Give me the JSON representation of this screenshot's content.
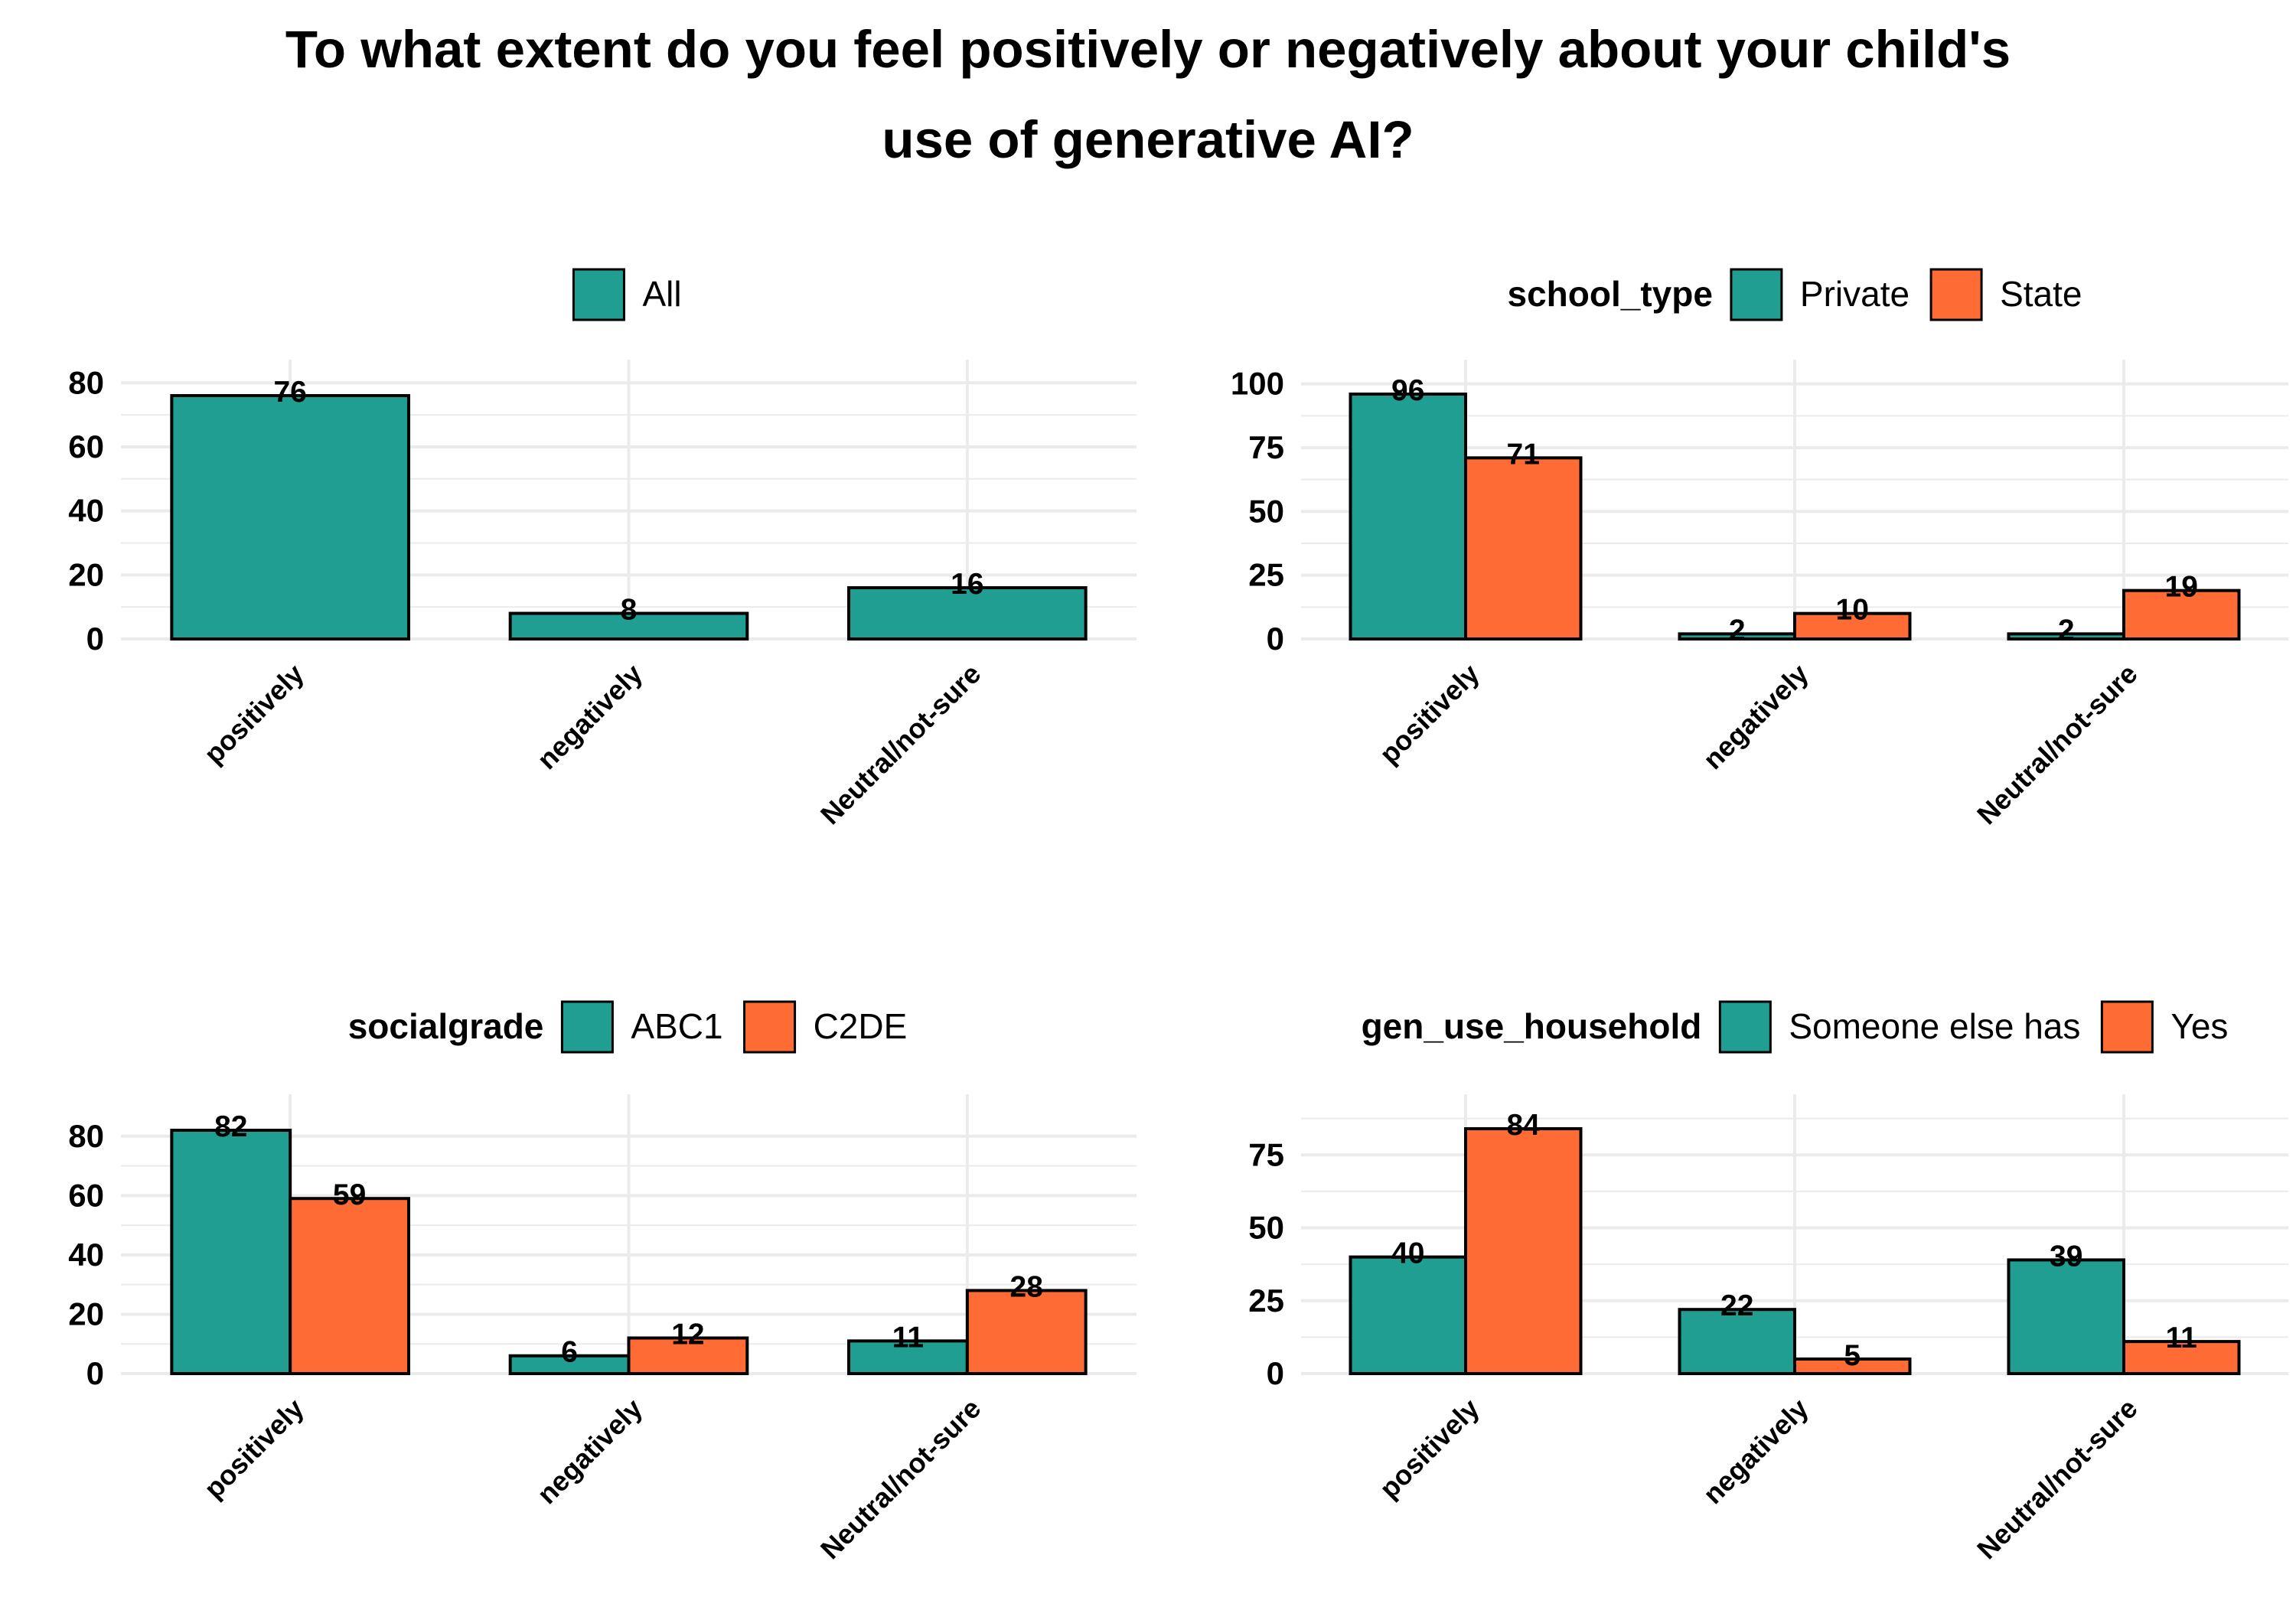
{
  "title": [
    "To what extent do you feel positively or negatively about your child's",
    "use of generative AI?"
  ],
  "colors": {
    "teal": "#1f9e91",
    "orange": "#ff6b35",
    "grid": "#ebebeb",
    "outline": "#000000"
  },
  "chart_data": [
    {
      "type": "bar",
      "categories": [
        "positively",
        "negatively",
        "Neutral/not-sure"
      ],
      "legend_title": "",
      "series": [
        {
          "name": "All",
          "values": [
            76,
            8,
            16
          ]
        }
      ],
      "ylim": [
        0,
        80
      ],
      "yticks": [
        0,
        20,
        40,
        60,
        80
      ]
    },
    {
      "type": "bar",
      "categories": [
        "positively",
        "negatively",
        "Neutral/not-sure"
      ],
      "legend_title": "school_type",
      "series": [
        {
          "name": "Private",
          "values": [
            96,
            2,
            2
          ]
        },
        {
          "name": "State",
          "values": [
            71,
            10,
            19
          ]
        }
      ],
      "ylim": [
        0,
        100
      ],
      "yticks": [
        0,
        25,
        50,
        75,
        100
      ]
    },
    {
      "type": "bar",
      "categories": [
        "positively",
        "negatively",
        "Neutral/not-sure"
      ],
      "legend_title": "socialgrade",
      "series": [
        {
          "name": "ABC1",
          "values": [
            82,
            6,
            11
          ]
        },
        {
          "name": "C2DE",
          "values": [
            59,
            12,
            28
          ]
        }
      ],
      "ylim": [
        0,
        80
      ],
      "yticks": [
        0,
        20,
        40,
        60,
        80
      ]
    },
    {
      "type": "bar",
      "categories": [
        "positively",
        "negatively",
        "Neutral/not-sure"
      ],
      "legend_title": "gen_use_household",
      "series": [
        {
          "name": "Someone else has",
          "values": [
            40,
            22,
            39
          ]
        },
        {
          "name": "Yes",
          "values": [
            84,
            5,
            11
          ]
        }
      ],
      "ylim": [
        0,
        75
      ],
      "yticks": [
        0,
        25,
        50,
        75
      ]
    }
  ]
}
